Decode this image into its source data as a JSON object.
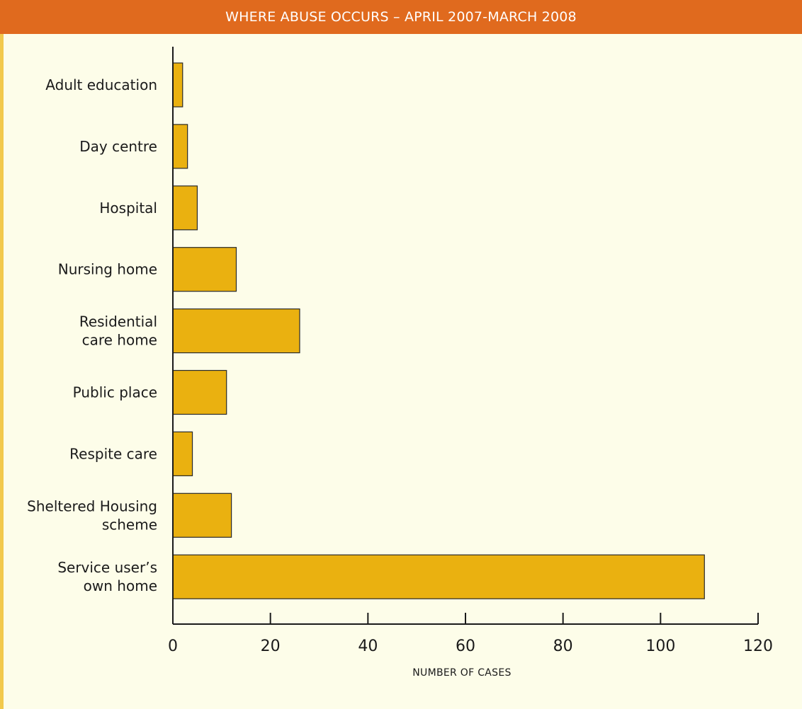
{
  "colors": {
    "title_bar": "#e06a1e",
    "left_border": "#f2c94c",
    "bar_fill": "#eab110",
    "bar_stroke": "#2a2a2a",
    "axis": "#1a1a1a",
    "background": "#fdfde9"
  },
  "chart_data": {
    "type": "bar",
    "orientation": "horizontal",
    "title": "WHERE ABUSE OCCURS –  APRIL 2007-MARCH 2008",
    "xlabel": "NUMBER OF CASES",
    "ylabel": "",
    "xlim": [
      0,
      120
    ],
    "xticks": [
      0,
      20,
      40,
      60,
      80,
      100,
      120
    ],
    "grid": false,
    "categories": [
      [
        "Adult education"
      ],
      [
        "Day centre"
      ],
      [
        "Hospital"
      ],
      [
        "Nursing home"
      ],
      [
        "Residential",
        "care home"
      ],
      [
        "Public place"
      ],
      [
        "Respite care"
      ],
      [
        "Sheltered Housing",
        "scheme"
      ],
      [
        "Service user’s",
        "own home"
      ]
    ],
    "values": [
      2,
      3,
      5,
      13,
      26,
      11,
      4,
      12,
      109
    ]
  }
}
